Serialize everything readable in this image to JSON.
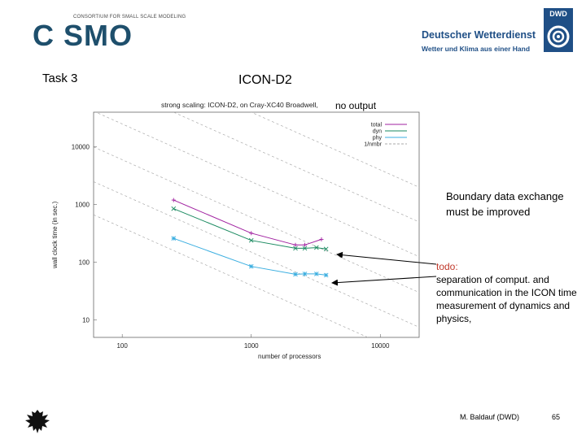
{
  "header": {
    "cosmo_word": "C SMO",
    "cosmo_subtitle": "CONSORTIUM FOR SMALL SCALE MODELING",
    "dwd_name": "Deutscher Wetterdienst",
    "dwd_slogan": "Wetter und Klima aus einer Hand",
    "dwd_badge": "DWD"
  },
  "slide": {
    "task": "Task 3",
    "title": "ICON-D2",
    "no_output": "no output",
    "boundary_note": "Boundary data exchange must be improved",
    "todo_label": "todo:",
    "todo_text": "separation of comput. and communication in the ICON time measurement of dynamics and physics,"
  },
  "footer": {
    "author": "M. Baldauf (DWD)",
    "page": "65"
  },
  "colors": {
    "total": "#a020a0",
    "dyn": "#1a8a60",
    "phy": "#3aaee0",
    "ideal": "#aaaaaa",
    "dwd_blue": "#1f4f86",
    "cosmo_blue": "#1e4f6c",
    "todo_red": "#c0392b"
  },
  "chart_data": {
    "type": "line",
    "title": "strong scaling: ICON-D2, on Cray-XC40 Broadwell,",
    "xlabel": "number of processors",
    "ylabel": "wall clock time (in sec.)",
    "xscale": "log",
    "yscale": "log",
    "xlim": [
      60,
      20000
    ],
    "ylim": [
      5,
      40000
    ],
    "xticks": [
      100,
      1000,
      10000
    ],
    "xtick_labels": [
      "100",
      "1000",
      "10000"
    ],
    "yticks": [
      10,
      100,
      1000,
      10000
    ],
    "ytick_labels": [
      "10",
      "100",
      "1000",
      "10000"
    ],
    "legend_position": "top-right",
    "series": [
      {
        "name": "total",
        "x": [
          250,
          1000,
          2200,
          2600,
          3500
        ],
        "y": [
          1200,
          320,
          200,
          200,
          250
        ]
      },
      {
        "name": "dyn",
        "x": [
          250,
          1000,
          2200,
          2600,
          3200,
          3800
        ],
        "y": [
          850,
          240,
          175,
          175,
          180,
          170
        ]
      },
      {
        "name": "phy",
        "x": [
          250,
          1000,
          2200,
          2600,
          3200,
          3800
        ],
        "y": [
          260,
          85,
          62,
          63,
          63,
          60
        ]
      },
      {
        "name": "1/nmbr",
        "type": "reference",
        "x": [
          60,
          20000
        ],
        "slope": -1,
        "anchors": [
          40000.0,
          150000.0,
          600000.0,
          2500000.0,
          10000000.0,
          40000000.0
        ]
      }
    ]
  }
}
